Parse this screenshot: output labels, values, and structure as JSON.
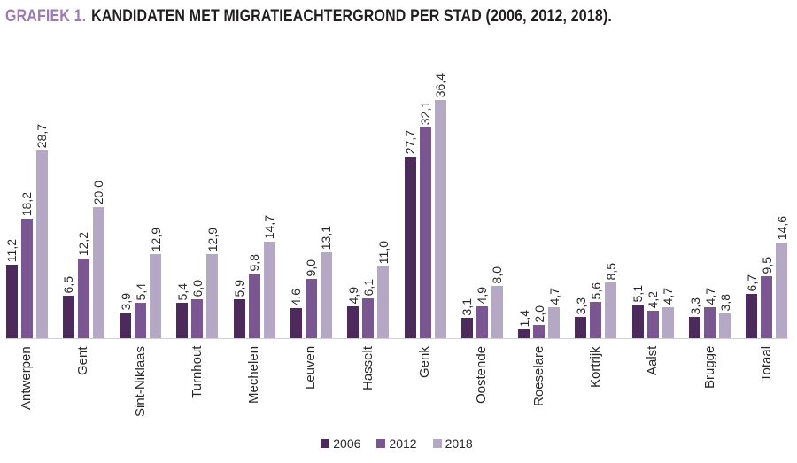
{
  "title": {
    "prefix": "GRAFIEK 1.",
    "text": "KANDIDATEN MET MIGRATIEACHTERGROND PER STAD (2006, 2012, 2018)."
  },
  "colors": {
    "title_prefix": "#9d79b7",
    "title_text": "#231f20",
    "axis_line": "#d2ced5",
    "label_text": "#2b282c"
  },
  "chart_data": {
    "type": "bar",
    "title": "GRAFIEK 1. KANDIDATEN MET MIGRATIEACHTERGROND PER STAD (2006, 2012, 2018).",
    "categories": [
      "Antwerpen",
      "Gent",
      "Sint-Niklaas",
      "Turnhout",
      "Mechelen",
      "Leuven",
      "Hasselt",
      "Genk",
      "Oostende",
      "Roeselare",
      "Kortrijk",
      "Aalst",
      "Brugge",
      "Totaal"
    ],
    "series": [
      {
        "name": "2006",
        "color": "#4d2a5c",
        "values": [
          11.2,
          6.5,
          3.9,
          5.4,
          5.9,
          4.6,
          4.9,
          27.7,
          3.1,
          1.4,
          3.3,
          5.1,
          3.3,
          6.7
        ]
      },
      {
        "name": "2012",
        "color": "#7a5792",
        "values": [
          18.2,
          12.2,
          5.4,
          6.0,
          9.8,
          9.0,
          6.1,
          32.1,
          4.9,
          2.0,
          5.6,
          4.2,
          4.7,
          9.5
        ]
      },
      {
        "name": "2018",
        "color": "#b5a8c5",
        "values": [
          28.7,
          20.0,
          12.9,
          12.9,
          14.7,
          13.1,
          11.0,
          36.4,
          8.0,
          4.7,
          8.5,
          4.7,
          3.8,
          14.6
        ]
      }
    ],
    "value_labels": true,
    "value_label_decimal_separator": ",",
    "value_label_rotation": 90,
    "category_label_rotation": 90,
    "legend_position": "bottom",
    "legend_items": [
      "2006",
      "2012",
      "2018"
    ],
    "xlabel": "",
    "ylabel": "",
    "ylim": [
      0,
      40
    ],
    "grid": false,
    "y_axis_visible": false
  }
}
